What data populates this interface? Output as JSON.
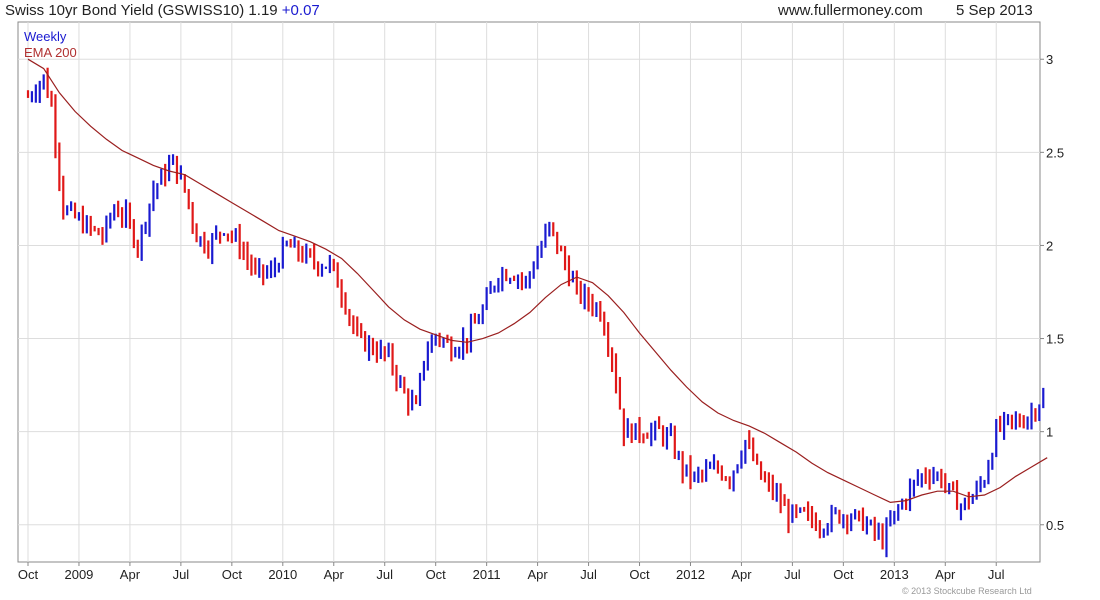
{
  "header": {
    "title": "Swiss 10yr Bond Yield (GSWISS10) 1.19",
    "change": "+0.07",
    "site": "www.fullermoney.com",
    "date": "5 Sep 2013"
  },
  "legend": {
    "weekly": "Weekly",
    "ema": "EMA 200"
  },
  "copyright": "© 2013 Stockcube Research Ltd",
  "colors": {
    "up": "#1a1ad0",
    "down": "#e01818",
    "ema": "#9a1f1f",
    "grid": "#dddddd"
  },
  "chart_data": {
    "type": "line",
    "x_ticks": [
      "Oct",
      "2009",
      "Apr",
      "Jul",
      "Oct",
      "2010",
      "Apr",
      "Jul",
      "Oct",
      "2011",
      "Apr",
      "Jul",
      "Oct",
      "2012",
      "Apr",
      "Jul",
      "Oct",
      "2013",
      "Apr",
      "Jul"
    ],
    "x_tick_weeks": [
      0,
      13,
      26,
      39,
      52,
      65,
      78,
      91,
      104,
      117,
      130,
      143,
      156,
      169,
      182,
      195,
      208,
      221,
      234,
      247
    ],
    "y_ticks": [
      "0.5",
      "1",
      "1.5",
      "2",
      "2.5",
      "3"
    ],
    "y_tick_values": [
      0.5,
      1,
      1.5,
      2,
      2.5,
      3
    ],
    "ylim": [
      0.3,
      3.2
    ],
    "weeks": 260,
    "grid": true,
    "series": [
      {
        "kind": "weekly-range",
        "anchors": [
          [
            0,
            2.8
          ],
          [
            4,
            2.9
          ],
          [
            6,
            2.75
          ],
          [
            9,
            2.2
          ],
          [
            12,
            2.15
          ],
          [
            15,
            2.1
          ],
          [
            19,
            2.05
          ],
          [
            22,
            2.2
          ],
          [
            25,
            2.15
          ],
          [
            28,
            2.0
          ],
          [
            32,
            2.3
          ],
          [
            37,
            2.45
          ],
          [
            40,
            2.3
          ],
          [
            43,
            2.05
          ],
          [
            46,
            2.0
          ],
          [
            50,
            2.1
          ],
          [
            54,
            2.0
          ],
          [
            58,
            1.85
          ],
          [
            62,
            1.85
          ],
          [
            66,
            2.0
          ],
          [
            70,
            1.95
          ],
          [
            74,
            1.9
          ],
          [
            77,
            1.9
          ],
          [
            80,
            1.75
          ],
          [
            84,
            1.5
          ],
          [
            88,
            1.45
          ],
          [
            92,
            1.4
          ],
          [
            96,
            1.2
          ],
          [
            99,
            1.12
          ],
          [
            101,
            1.4
          ],
          [
            104,
            1.52
          ],
          [
            108,
            1.45
          ],
          [
            112,
            1.5
          ],
          [
            116,
            1.65
          ],
          [
            120,
            1.85
          ],
          [
            124,
            1.85
          ],
          [
            127,
            1.8
          ],
          [
            130,
            1.95
          ],
          [
            133,
            2.1
          ],
          [
            136,
            1.95
          ],
          [
            140,
            1.75
          ],
          [
            143,
            1.7
          ],
          [
            146,
            1.65
          ],
          [
            149,
            1.4
          ],
          [
            152,
            1.0
          ],
          [
            155,
            1.0
          ],
          [
            158,
            1.0
          ],
          [
            161,
            1.0
          ],
          [
            164,
            0.95
          ],
          [
            167,
            0.8
          ],
          [
            170,
            0.75
          ],
          [
            173,
            0.78
          ],
          [
            176,
            0.8
          ],
          [
            179,
            0.75
          ],
          [
            183,
            0.95
          ],
          [
            187,
            0.75
          ],
          [
            190,
            0.68
          ],
          [
            194,
            0.55
          ],
          [
            198,
            0.55
          ],
          [
            202,
            0.5
          ],
          [
            206,
            0.55
          ],
          [
            210,
            0.55
          ],
          [
            214,
            0.5
          ],
          [
            218,
            0.42
          ],
          [
            221,
            0.55
          ],
          [
            224,
            0.65
          ],
          [
            227,
            0.75
          ],
          [
            230,
            0.78
          ],
          [
            233,
            0.75
          ],
          [
            236,
            0.65
          ],
          [
            238,
            0.6
          ],
          [
            241,
            0.65
          ],
          [
            244,
            0.75
          ],
          [
            247,
            1.0
          ],
          [
            250,
            1.05
          ],
          [
            253,
            1.05
          ],
          [
            256,
            1.1
          ],
          [
            259,
            1.19
          ]
        ]
      },
      {
        "name": "EMA 200",
        "x": [
          0,
          4,
          8,
          12,
          16,
          20,
          24,
          28,
          32,
          36,
          40,
          44,
          48,
          52,
          56,
          60,
          64,
          68,
          72,
          76,
          80,
          84,
          88,
          92,
          96,
          100,
          104,
          108,
          112,
          116,
          120,
          124,
          128,
          132,
          136,
          140,
          144,
          148,
          152,
          156,
          160,
          164,
          168,
          172,
          176,
          180,
          184,
          188,
          192,
          196,
          200,
          204,
          208,
          212,
          216,
          220,
          224,
          228,
          232,
          236,
          240,
          244,
          248,
          252,
          256,
          260
        ],
        "values": [
          3.0,
          2.95,
          2.82,
          2.72,
          2.64,
          2.57,
          2.51,
          2.47,
          2.43,
          2.4,
          2.38,
          2.33,
          2.28,
          2.23,
          2.18,
          2.13,
          2.08,
          2.05,
          2.02,
          1.98,
          1.93,
          1.85,
          1.76,
          1.67,
          1.6,
          1.55,
          1.52,
          1.49,
          1.48,
          1.5,
          1.53,
          1.58,
          1.64,
          1.72,
          1.79,
          1.83,
          1.8,
          1.73,
          1.64,
          1.53,
          1.43,
          1.33,
          1.24,
          1.16,
          1.1,
          1.06,
          1.03,
          0.99,
          0.94,
          0.89,
          0.83,
          0.78,
          0.74,
          0.7,
          0.66,
          0.62,
          0.63,
          0.66,
          0.68,
          0.68,
          0.65,
          0.66,
          0.7,
          0.76,
          0.81,
          0.86
        ]
      }
    ]
  }
}
